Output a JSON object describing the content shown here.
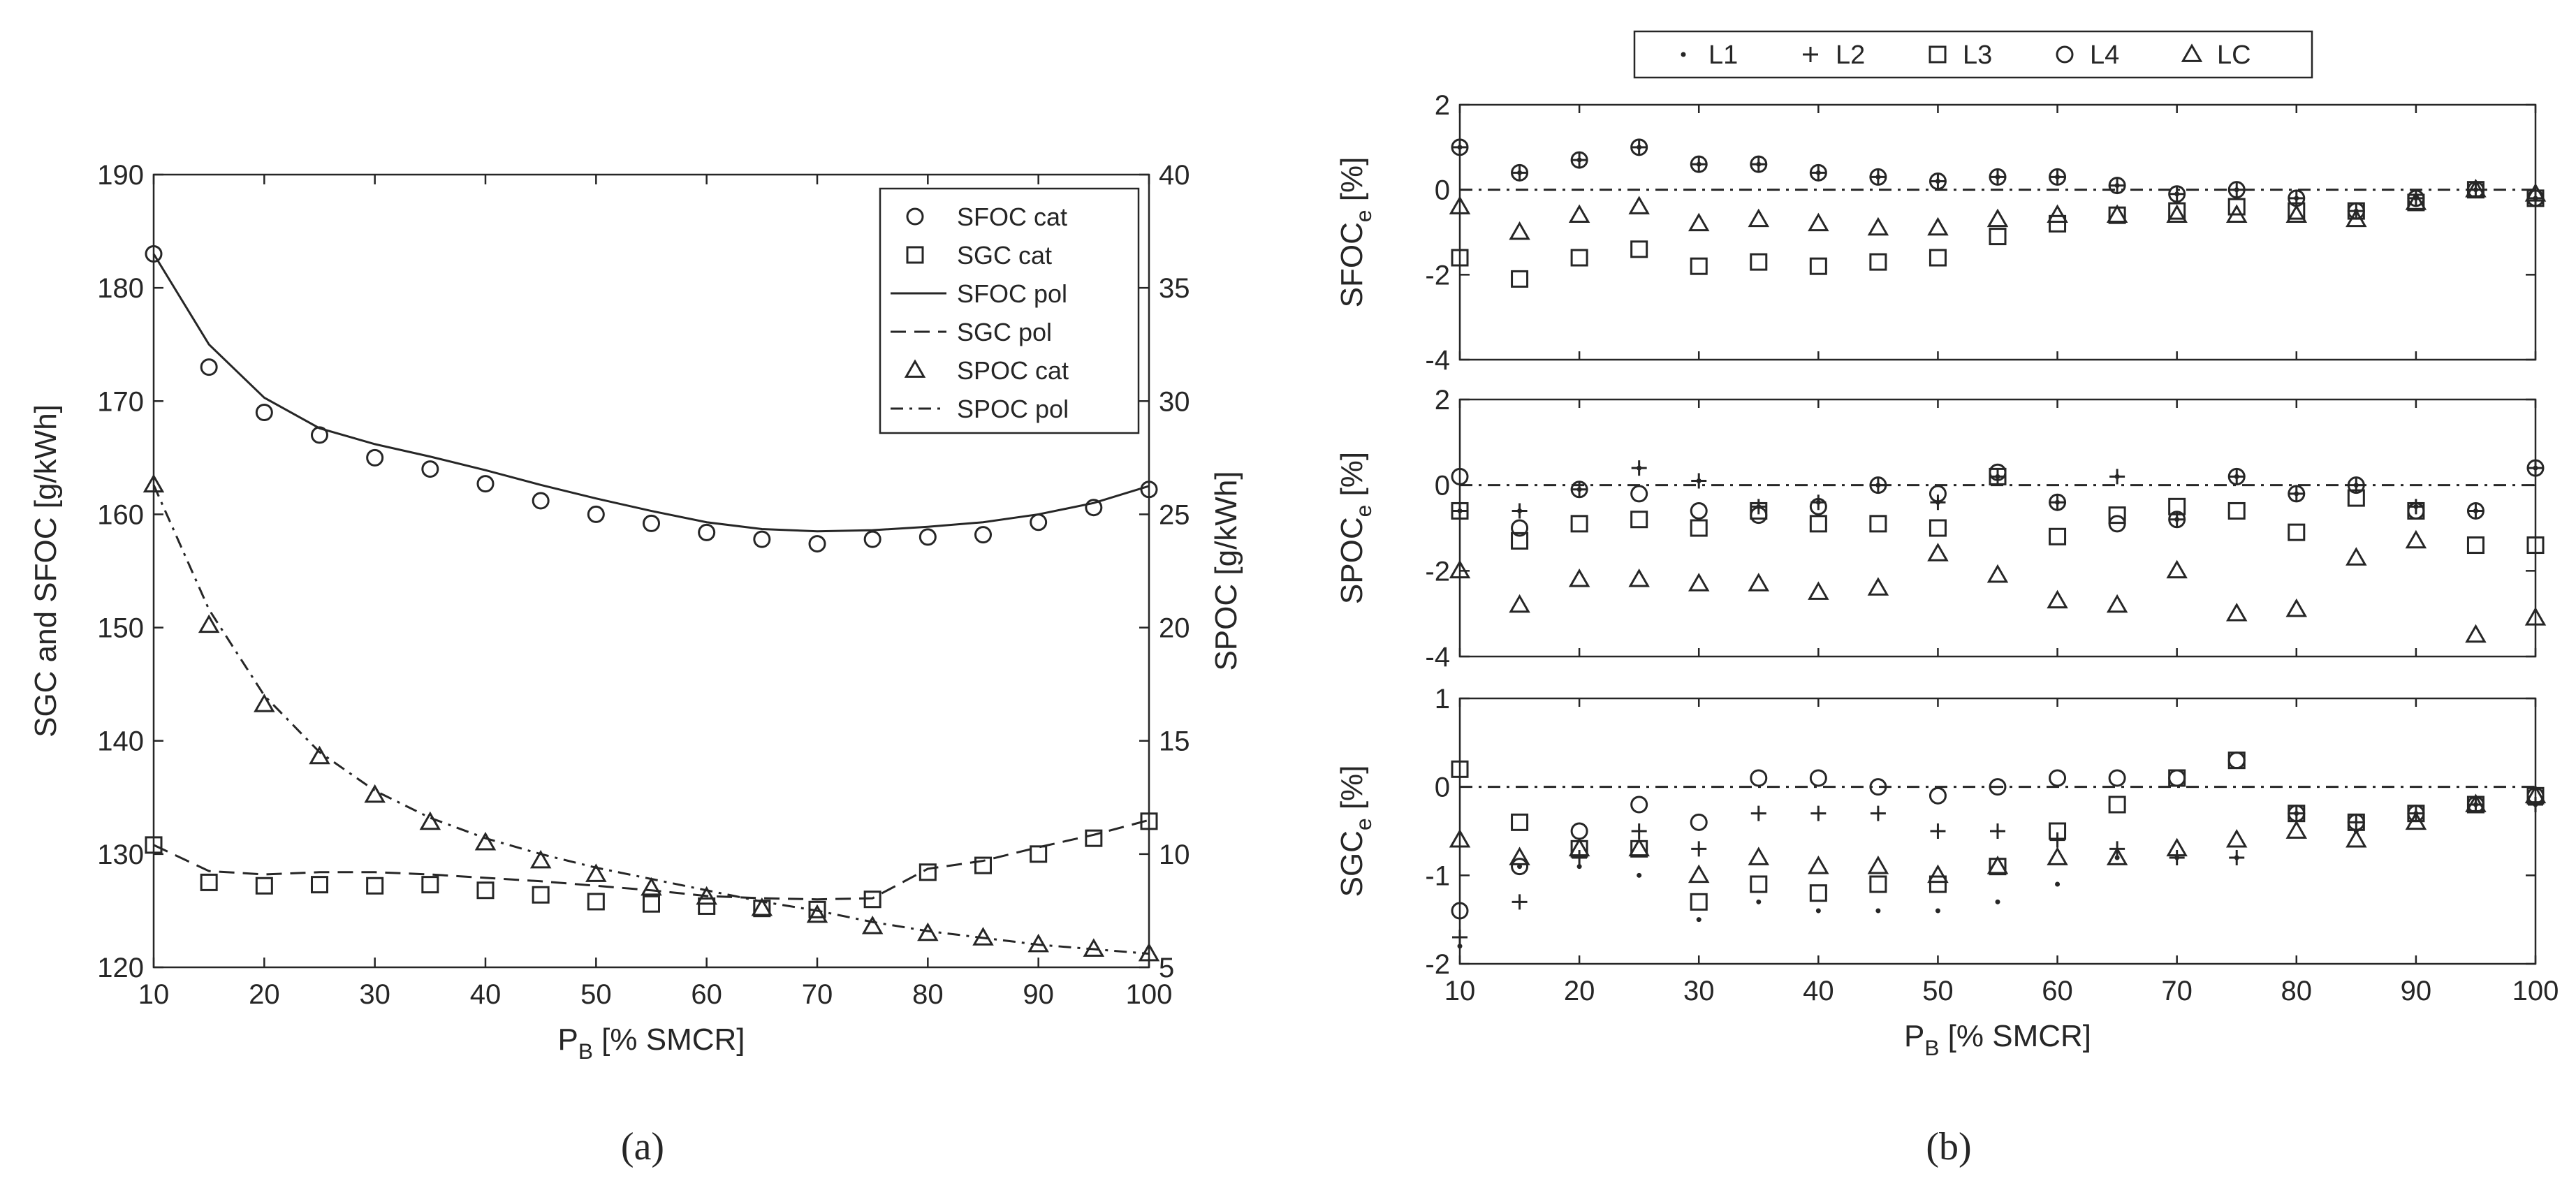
{
  "panel_a": {
    "caption": "(a)",
    "xlabel_main": "P",
    "xlabel_sub": "B",
    "xlabel_rest": " [% SMCR]",
    "ylabel_left": "SGC and SFOC [g/kWh]",
    "ylabel_right": "SPOC [g/kWh]",
    "xticks": [
      "10",
      "20",
      "30",
      "40",
      "50",
      "60",
      "70",
      "80",
      "90",
      "100"
    ],
    "yticks_left": [
      "120",
      "130",
      "140",
      "150",
      "160",
      "170",
      "180",
      "190"
    ],
    "yticks_right": [
      "5",
      "10",
      "15",
      "20",
      "25",
      "30",
      "35",
      "40"
    ],
    "legend": [
      "SFOC cat",
      "SGC cat",
      "SFOC pol",
      "SGC pol",
      "SPOC cat",
      "SPOC pol"
    ]
  },
  "panel_b": {
    "caption": "(b)",
    "xlabel_main": "P",
    "xlabel_sub": "B",
    "xlabel_rest": " [% SMCR]",
    "xticks": [
      "10",
      "20",
      "30",
      "40",
      "50",
      "60",
      "70",
      "80",
      "90",
      "100"
    ],
    "legend": [
      "L1",
      "L2",
      "L3",
      "L4",
      "LC"
    ],
    "sub": [
      {
        "label_main": "SFOC",
        "label_sub": "e",
        "label_rest": " [%]",
        "yticks": [
          "2",
          "0",
          "-2",
          "-4"
        ]
      },
      {
        "label_main": "SPOC",
        "label_sub": "e",
        "label_rest": " [%]",
        "yticks": [
          "2",
          "0",
          "-2",
          "-4"
        ]
      },
      {
        "label_main": "SGC",
        "label_sub": "e",
        "label_rest": " [%]",
        "yticks": [
          "1",
          "0",
          "-1",
          "-2"
        ]
      }
    ]
  },
  "chart_data": [
    {
      "type": "line",
      "x": [
        10,
        15,
        20,
        25,
        30,
        35,
        40,
        45,
        50,
        55,
        60,
        65,
        70,
        75,
        80,
        85,
        90,
        95,
        100
      ],
      "xlim": [
        10,
        100
      ],
      "ylim_left": [
        120,
        190
      ],
      "ylim_right": [
        5,
        40
      ],
      "grid": false,
      "legend_position": "top-right",
      "series": [
        {
          "name": "SFOC cat",
          "axis": "left",
          "marker": "circle",
          "values": [
            183,
            173,
            169,
            167,
            165,
            164,
            162.7,
            161.2,
            160,
            159.2,
            158.4,
            157.8,
            157.4,
            157.8,
            158,
            158.2,
            159.3,
            160.6,
            162.2
          ]
        },
        {
          "name": "SGC cat",
          "axis": "left",
          "marker": "square",
          "values": [
            130.8,
            127.5,
            127.2,
            127.3,
            127.2,
            127.3,
            126.8,
            126.4,
            125.8,
            125.6,
            125.4,
            125.2,
            125.1,
            126.0,
            128.4,
            129.0,
            130.0,
            131.4,
            132.9
          ]
        },
        {
          "name": "SFOC pol",
          "axis": "left",
          "style": "solid",
          "values": [
            183,
            175,
            170.3,
            167.6,
            166.2,
            165.1,
            163.9,
            162.6,
            161.4,
            160.3,
            159.3,
            158.7,
            158.5,
            158.6,
            158.9,
            159.3,
            160.0,
            161.0,
            162.5
          ]
        },
        {
          "name": "SGC pol",
          "axis": "left",
          "style": "dashed",
          "values": [
            130.8,
            128.5,
            128.2,
            128.4,
            128.4,
            128.2,
            127.9,
            127.6,
            127.2,
            126.8,
            126.3,
            126.1,
            126.0,
            126.1,
            128.7,
            129.4,
            130.6,
            131.7,
            133.0
          ]
        },
        {
          "name": "SPOC cat",
          "axis": "right",
          "marker": "triangle",
          "values": [
            26.3,
            20.1,
            16.6,
            14.3,
            12.6,
            11.4,
            10.5,
            9.7,
            9.1,
            8.5,
            8.1,
            7.6,
            7.3,
            6.8,
            6.5,
            6.3,
            6.0,
            5.8,
            5.6
          ]
        },
        {
          "name": "SPOC pol",
          "axis": "right",
          "style": "dashdot",
          "values": [
            26.3,
            20.8,
            17.0,
            14.5,
            12.8,
            11.6,
            10.7,
            10.0,
            9.4,
            8.9,
            8.4,
            7.9,
            7.5,
            7.0,
            6.6,
            6.3,
            6.0,
            5.8,
            5.6
          ]
        }
      ]
    },
    {
      "type": "scatter",
      "x": [
        10,
        15,
        20,
        25,
        30,
        35,
        40,
        45,
        50,
        55,
        60,
        65,
        70,
        75,
        80,
        85,
        90,
        95,
        100
      ],
      "xlim": [
        10,
        100
      ],
      "legend_position": "top-center",
      "subplots": [
        {
          "ylim": [
            -4,
            2
          ],
          "reference_line": 0,
          "series": [
            {
              "name": "L1",
              "marker": "dot",
              "values": [
                1.0,
                0.4,
                0.7,
                1.0,
                0.6,
                0.6,
                0.4,
                0.3,
                0.2,
                0.3,
                0.3,
                0.1,
                -0.1,
                0.0,
                -0.2,
                -0.5,
                -0.2,
                0.0,
                -0.2
              ]
            },
            {
              "name": "L2",
              "marker": "plus",
              "values": [
                1.0,
                0.4,
                0.7,
                1.0,
                0.6,
                0.6,
                0.4,
                0.3,
                0.2,
                0.3,
                0.3,
                0.1,
                -0.1,
                0.0,
                -0.2,
                -0.5,
                -0.2,
                0.0,
                -0.2
              ]
            },
            {
              "name": "L3",
              "marker": "square",
              "values": [
                -1.6,
                -2.1,
                -1.6,
                -1.4,
                -1.8,
                -1.7,
                -1.8,
                -1.7,
                -1.6,
                -1.1,
                -0.8,
                -0.6,
                -0.5,
                -0.4,
                -0.5,
                -0.5,
                -0.3,
                0.0,
                -0.2
              ]
            },
            {
              "name": "L4",
              "marker": "circle",
              "values": [
                1.0,
                0.4,
                0.7,
                1.0,
                0.6,
                0.6,
                0.4,
                0.3,
                0.2,
                0.3,
                0.3,
                0.1,
                -0.1,
                0.0,
                -0.2,
                -0.5,
                -0.2,
                0.0,
                -0.2
              ]
            },
            {
              "name": "LC",
              "marker": "triangle",
              "values": [
                -0.4,
                -1.0,
                -0.6,
                -0.4,
                -0.8,
                -0.7,
                -0.8,
                -0.9,
                -0.9,
                -0.7,
                -0.6,
                -0.6,
                -0.6,
                -0.6,
                -0.6,
                -0.7,
                -0.3,
                0.0,
                -0.1
              ]
            }
          ]
        },
        {
          "ylim": [
            -4,
            2
          ],
          "reference_line": 0,
          "series": [
            {
              "name": "L1",
              "marker": "dot",
              "values": [
                -0.6,
                -0.6,
                -0.1,
                0.4,
                0.1,
                -0.5,
                -0.4,
                0.0,
                -0.4,
                0.2,
                -0.4,
                0.2,
                -0.8,
                0.2,
                -0.2,
                0.0,
                -0.5,
                -0.6,
                0.4
              ]
            },
            {
              "name": "L2",
              "marker": "plus",
              "values": [
                -0.6,
                -0.6,
                -0.1,
                0.4,
                0.1,
                -0.5,
                -0.4,
                0.0,
                -0.4,
                0.2,
                -0.4,
                0.2,
                -0.8,
                0.2,
                -0.2,
                0.0,
                -0.5,
                -0.6,
                0.4
              ]
            },
            {
              "name": "L3",
              "marker": "square",
              "values": [
                -0.6,
                -1.3,
                -0.9,
                -0.8,
                -1.0,
                -0.6,
                -0.9,
                -0.9,
                -1.0,
                0.2,
                -1.2,
                -0.7,
                -0.5,
                -0.6,
                -1.1,
                -0.3,
                -0.6,
                -1.4,
                -1.4
              ]
            },
            {
              "name": "L4",
              "marker": "circle",
              "values": [
                0.2,
                -1.0,
                -0.1,
                -0.2,
                -0.6,
                -0.7,
                -0.5,
                0.0,
                -0.2,
                0.3,
                -0.4,
                -0.9,
                -0.8,
                0.2,
                -0.2,
                0.0,
                -0.6,
                -0.6,
                0.4
              ]
            },
            {
              "name": "LC",
              "marker": "triangle",
              "values": [
                -2.0,
                -2.8,
                -2.2,
                -2.2,
                -2.3,
                -2.3,
                -2.5,
                -2.4,
                -1.6,
                -2.1,
                -2.7,
                -2.8,
                -2.0,
                -3.0,
                -2.9,
                -1.7,
                -1.3,
                -3.5,
                -3.1
              ]
            }
          ]
        },
        {
          "ylim": [
            -2,
            1
          ],
          "reference_line": 0,
          "series": [
            {
              "name": "L1",
              "marker": "dot",
              "values": [
                -1.8,
                -0.9,
                -0.9,
                -1.0,
                -1.5,
                -1.3,
                -1.4,
                -1.4,
                -1.4,
                -1.3,
                -1.1,
                -0.8,
                -0.8,
                -0.8,
                -0.3,
                -0.5,
                -0.3,
                -0.2,
                -0.2
              ]
            },
            {
              "name": "L2",
              "marker": "plus",
              "values": [
                -1.7,
                -1.3,
                -0.8,
                -0.5,
                -0.7,
                -0.3,
                -0.3,
                -0.3,
                -0.5,
                -0.5,
                -0.6,
                -0.7,
                -0.8,
                -0.8,
                -0.3,
                -0.4,
                -0.3,
                -0.2,
                -0.2
              ]
            },
            {
              "name": "L3",
              "marker": "square",
              "values": [
                0.2,
                -0.4,
                -0.7,
                -0.7,
                -1.3,
                -1.1,
                -1.2,
                -1.1,
                -1.1,
                -0.9,
                -0.5,
                -0.2,
                0.1,
                0.3,
                -0.3,
                -0.4,
                -0.3,
                -0.2,
                -0.1
              ]
            },
            {
              "name": "L4",
              "marker": "circle",
              "values": [
                -1.4,
                -0.9,
                -0.5,
                -0.2,
                -0.4,
                0.1,
                0.1,
                0.0,
                -0.1,
                0.0,
                0.1,
                0.1,
                0.1,
                0.3,
                -0.3,
                -0.4,
                -0.3,
                -0.2,
                -0.1
              ]
            },
            {
              "name": "LC",
              "marker": "triangle",
              "values": [
                -0.6,
                -0.8,
                -0.7,
                -0.7,
                -1.0,
                -0.8,
                -0.9,
                -0.9,
                -1.0,
                -0.9,
                -0.8,
                -0.8,
                -0.7,
                -0.6,
                -0.5,
                -0.6,
                -0.4,
                -0.2,
                -0.1
              ]
            }
          ]
        }
      ]
    }
  ]
}
